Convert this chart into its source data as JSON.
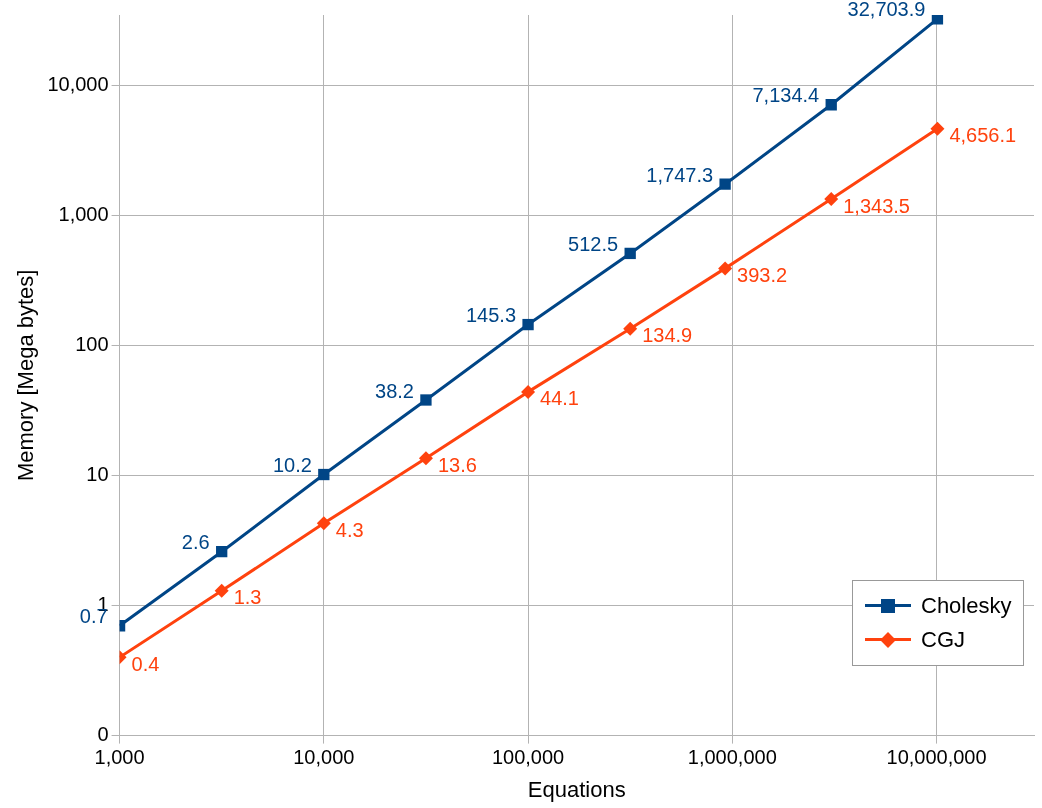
{
  "chart_data": {
    "type": "line",
    "xlabel": "Equations",
    "ylabel": "Memory [Mega bytes]",
    "log": "xy",
    "grid": true,
    "legend": "bottom right",
    "line_style": "solid",
    "x": [
      1000,
      3162,
      10000,
      31623,
      100000,
      316228,
      922000,
      3050000,
      10100000
    ],
    "xlim": [
      1000,
      30000000
    ],
    "xticks": [
      {
        "value": 1000,
        "label": "1,000"
      },
      {
        "value": 10000,
        "label": "10,000"
      },
      {
        "value": 100000,
        "label": "100,000"
      },
      {
        "value": 1000000,
        "label": "1,000,000"
      },
      {
        "value": 10000000,
        "label": "10,000,000"
      }
    ],
    "ylim": [
      0.1,
      35000
    ],
    "yticks": [
      {
        "value": 0.1,
        "label": "0"
      },
      1,
      10,
      100,
      {
        "value": 1000,
        "label": "1,000"
      },
      {
        "value": 10000,
        "label": "10,000"
      }
    ],
    "series": [
      {
        "name": "Cholesky",
        "color": "#004586",
        "marker": "square",
        "values": [
          0.7,
          2.6,
          10.2,
          38.2,
          145.3,
          512.5,
          1747.3,
          7134.4,
          32703.9
        ],
        "value_labels": [
          "0.7",
          "2.6",
          "10.2",
          "38.2",
          "145.3",
          "512.5",
          "1,747.3",
          "7,134.4",
          "32,703.9"
        ]
      },
      {
        "name": "CGJ",
        "color": "#ff420e",
        "marker": "diamond",
        "values": [
          0.4,
          1.3,
          4.3,
          13.6,
          44.1,
          134.9,
          393.2,
          1343.5,
          4656.1
        ],
        "value_labels": [
          "0.4",
          "1.3",
          "4.3",
          "13.6",
          "44.1",
          "134.9",
          "393.2",
          "1,343.5",
          "4,656.1"
        ]
      }
    ]
  }
}
